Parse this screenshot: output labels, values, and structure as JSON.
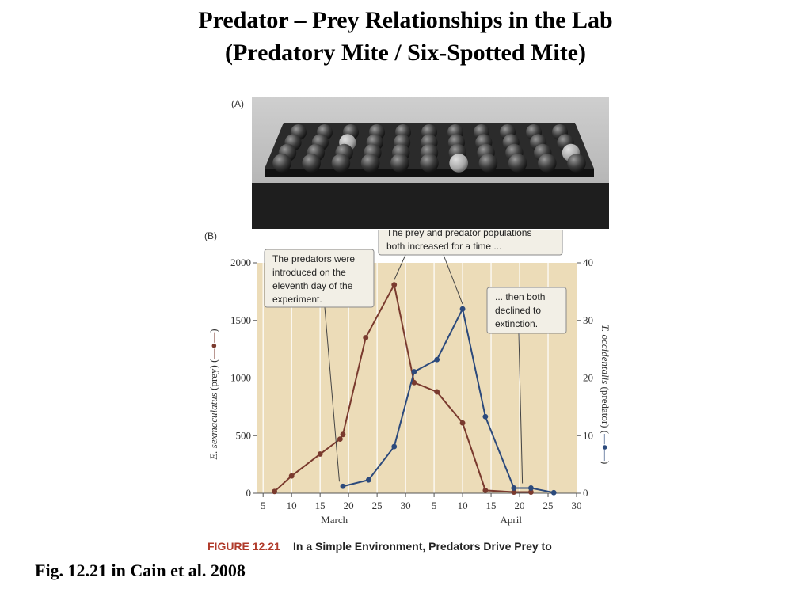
{
  "title_line1": "Predator – Prey Relationships in the Lab",
  "title_line2": "(Predatory Mite / Six-Spotted Mite)",
  "photo": {
    "panel_label": "(A)"
  },
  "caption": "Fig. 12.21 in Cain et al. 2008",
  "figure": {
    "number": "FIGURE 12.21",
    "title": "In a Simple Environment, Predators Drive Prey to"
  },
  "chart_data": {
    "type": "line",
    "panel_label": "(B)",
    "x_ticks": [
      "5",
      "10",
      "15",
      "20",
      "25",
      "30",
      "5",
      "10",
      "15",
      "20",
      "25",
      "30"
    ],
    "month_labels": [
      "March",
      "April"
    ],
    "left_axis": {
      "label_italic": "E. sexmaculatus",
      "label_rest": " (prey) (",
      "ticks": [
        0,
        500,
        1000,
        1500,
        2000
      ],
      "ylim": [
        0,
        2000
      ]
    },
    "right_axis": {
      "label_italic": "T. occidentalis",
      "label_rest": " (predator) (",
      "ticks": [
        0,
        10,
        20,
        30,
        40
      ],
      "ylim": [
        0,
        40
      ]
    },
    "grid": true,
    "series": [
      {
        "axis": "left",
        "color": "#7a3a2e",
        "x": [
          7,
          10,
          15,
          18.5,
          19,
          23,
          28,
          31.5,
          35.5,
          40,
          44,
          49,
          52
        ],
        "y": [
          15,
          150,
          340,
          470,
          510,
          1350,
          1810,
          960,
          880,
          610,
          25,
          10,
          10
        ]
      },
      {
        "axis": "right",
        "color": "#2c4a7c",
        "x": [
          19,
          23.5,
          28,
          31.5,
          35.5,
          40,
          44,
          49,
          52,
          56
        ],
        "y": [
          1.2,
          2.3,
          8.1,
          21.1,
          23.2,
          32,
          13.3,
          0.9,
          0.9,
          0.1
        ]
      }
    ],
    "annotations": [
      {
        "lines": [
          "The predators were",
          "introduced on the",
          "eleventh day of the",
          "experiment."
        ]
      },
      {
        "lines": [
          "The prey and predator populations",
          "both increased for a time ..."
        ]
      },
      {
        "lines": [
          "... then both",
          "declined to",
          "extinction."
        ]
      }
    ]
  }
}
